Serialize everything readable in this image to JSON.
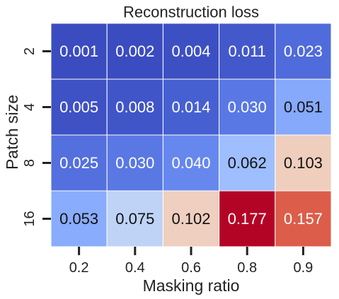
{
  "chart_data": {
    "type": "heatmap",
    "title": "Reconstruction loss",
    "xlabel": "Masking ratio",
    "ylabel": "Patch size",
    "x": [
      "0.2",
      "0.4",
      "0.6",
      "0.8",
      "0.9"
    ],
    "y": [
      "2",
      "4",
      "8",
      "16"
    ],
    "values": [
      [
        "0.001",
        "0.002",
        "0.004",
        "0.011",
        "0.023"
      ],
      [
        "0.005",
        "0.008",
        "0.014",
        "0.030",
        "0.051"
      ],
      [
        "0.025",
        "0.030",
        "0.040",
        "0.062",
        "0.103"
      ],
      [
        "0.053",
        "0.075",
        "0.102",
        "0.177",
        "0.157"
      ]
    ],
    "colormap": "coolwarm",
    "cell_colors": [
      [
        "#3b4cc0",
        "#3b4cc0",
        "#3d50c3",
        "#4358cb",
        "#506bdb"
      ],
      [
        "#3e51c5",
        "#4055c8",
        "#4760d1",
        "#5a78e4",
        "#86a9fc"
      ],
      [
        "#5470de",
        "#5a78e4",
        "#6688ee",
        "#9ebeff",
        "#efcebd"
      ],
      [
        "#89acfd",
        "#bfd3f6",
        "#efcfbf",
        "#b40426",
        "#dc5d4a"
      ]
    ],
    "text_colors": [
      [
        "#ffffff",
        "#ffffff",
        "#ffffff",
        "#ffffff",
        "#ffffff"
      ],
      [
        "#ffffff",
        "#ffffff",
        "#ffffff",
        "#ffffff",
        "#111111"
      ],
      [
        "#ffffff",
        "#ffffff",
        "#ffffff",
        "#111111",
        "#111111"
      ],
      [
        "#111111",
        "#111111",
        "#111111",
        "#ffffff",
        "#ffffff"
      ]
    ]
  }
}
